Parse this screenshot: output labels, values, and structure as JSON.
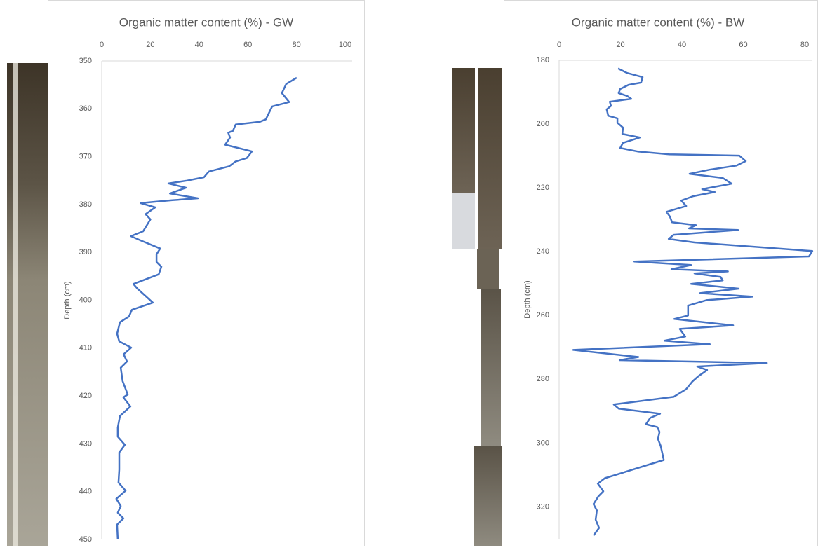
{
  "chart_data": [
    {
      "type": "line",
      "title": "Organic matter content (%) - GW",
      "y_label": "Depth (cm)",
      "xlim": [
        0,
        100
      ],
      "xticks": [
        0,
        20,
        40,
        60,
        80,
        100
      ],
      "ylim": [
        350,
        450
      ],
      "yticks": [
        350,
        360,
        370,
        380,
        390,
        400,
        410,
        420,
        430,
        440,
        450
      ],
      "grid": false,
      "series": [
        {
          "color": "#4472c4",
          "x": [
            80.1,
            75.8,
            74,
            77,
            70,
            67.4,
            65,
            55,
            53.9,
            52,
            52.7,
            50.7,
            61.7,
            59.6,
            55,
            52.4,
            44,
            42,
            35,
            27.4,
            34.6,
            28,
            39.5,
            29,
            16,
            22,
            18,
            20,
            17,
            12,
            16,
            24,
            22.5,
            22.5,
            24.5,
            23.4,
            13,
            14.7,
            21,
            12.4,
            11.2,
            7.5,
            6.3,
            7.2,
            12.1,
            9,
            10.4,
            7.8,
            8.6,
            10.7,
            8.9,
            11.8,
            7.5,
            6.6,
            6.6,
            9.5,
            7.2,
            7.2,
            6.9,
            9.8,
            6,
            7.8,
            6.6,
            8.9,
            6.3,
            6.6
          ],
          "y": [
            353.5,
            354.8,
            356.7,
            358.6,
            359.5,
            362.2,
            362.7,
            363.3,
            364.6,
            365,
            366,
            367.5,
            368.9,
            370.3,
            371,
            372,
            373.1,
            374.3,
            375,
            375.6,
            376.5,
            377.7,
            378.7,
            379.1,
            379.7,
            380.6,
            382,
            383.1,
            385.6,
            386.6,
            387.5,
            389.2,
            390.4,
            392,
            393,
            394.6,
            396.6,
            397.6,
            400.5,
            402,
            403.4,
            404.6,
            407,
            408.6,
            409.9,
            411.3,
            412.8,
            414.1,
            416.9,
            419.7,
            420.3,
            422.2,
            424.2,
            426.6,
            428.5,
            430.2,
            431.8,
            435.4,
            438.1,
            439.8,
            441.5,
            443,
            444.4,
            445.6,
            446.9,
            450
          ]
        }
      ]
    },
    {
      "type": "line",
      "title": "Organic matter content (%) - BW",
      "y_label": "Depth (cm)",
      "xlim": [
        0,
        80
      ],
      "xticks": [
        0,
        20,
        40,
        60,
        80
      ],
      "ylim": [
        180,
        330
      ],
      "yticks": [
        180,
        200,
        220,
        240,
        260,
        280,
        300,
        320
      ],
      "grid": false,
      "series": [
        {
          "color": "#4472c4",
          "x": [
            19.2,
            22.2,
            27.2,
            26.7,
            22.6,
            19.9,
            19.4,
            22.2,
            23.5,
            16.5,
            16.9,
            15.5,
            16,
            19,
            19,
            20.8,
            20.6,
            26.3,
            20.8,
            19.9,
            25.6,
            35.9,
            58.7,
            60.8,
            57.8,
            49,
            42.5,
            53.3,
            56.2,
            46.6,
            50.7,
            43.7,
            39.8,
            41.4,
            35,
            36.1,
            36.8,
            44.6,
            42.3,
            58.3,
            37.3,
            35.7,
            44.1,
            82.5,
            81.4,
            24.5,
            43,
            36.6,
            55,
            44.1,
            52.6,
            53.3,
            43,
            58.5,
            45.9,
            63,
            48,
            42,
            42,
            37.5,
            56.7,
            39.3,
            41.1,
            34.3,
            49.1,
            4.6,
            25.8,
            19.7,
            67.7,
            45,
            48.2,
            45.3,
            43.4,
            41.4,
            37.3,
            17.8,
            19.4,
            32.9,
            29.7,
            28.3,
            32,
            32.7,
            32.2,
            33.1,
            34.1,
            14.9,
            12.6,
            14.4,
            12.8,
            11.2,
            12.3,
            11.9,
            13,
            11.2
          ],
          "y": [
            182.6,
            184,
            185.3,
            187,
            187.7,
            189,
            190.3,
            191.2,
            192.1,
            193,
            194.3,
            195.4,
            197.4,
            198.2,
            199.6,
            201.1,
            203.1,
            204.2,
            205.9,
            207.5,
            208.6,
            209.5,
            209.9,
            211.6,
            213,
            214.3,
            215.6,
            216.9,
            218.7,
            220.4,
            221.3,
            222.6,
            224,
            225.7,
            227.5,
            229,
            230.8,
            231.7,
            232.7,
            233.2,
            234.7,
            236,
            237.1,
            239.8,
            241.5,
            243.1,
            244.2,
            245.5,
            246.2,
            246.8,
            247.9,
            249,
            250.1,
            251.6,
            253,
            254.1,
            255.2,
            256.9,
            260,
            261.1,
            263.1,
            264.2,
            266.6,
            267.9,
            269,
            270.8,
            273,
            274,
            274.9,
            276,
            277.1,
            279.1,
            280.7,
            283.1,
            285.5,
            287.9,
            289.2,
            290.8,
            292.1,
            294.1,
            295,
            296.5,
            298.7,
            300.9,
            305.3,
            311,
            312.7,
            315.1,
            316.7,
            319.1,
            321.1,
            324,
            326.6,
            329
          ]
        }
      ]
    }
  ]
}
